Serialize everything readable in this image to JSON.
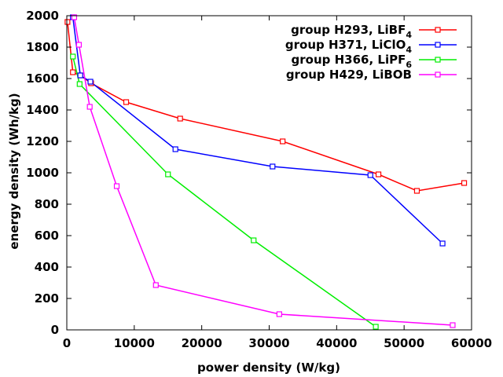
{
  "chart_data": {
    "type": "line",
    "title": "",
    "xlabel": "power density (W/kg)",
    "ylabel": "energy density (Wh/kg)",
    "xlim": [
      0,
      60000
    ],
    "ylim": [
      0,
      2000
    ],
    "xticks": [
      0,
      10000,
      20000,
      30000,
      40000,
      50000,
      60000
    ],
    "yticks": [
      0,
      200,
      400,
      600,
      800,
      1000,
      1200,
      1400,
      1600,
      1800,
      2000
    ],
    "grid": false,
    "legend_position": "top-right",
    "series": [
      {
        "name": "group H293,  LiBF",
        "subscript": "4",
        "color": "#ff0000",
        "x": [
          100,
          900,
          2000,
          3600,
          8800,
          16800,
          32000,
          46200,
          51900,
          58900
        ],
        "y": [
          1960,
          1640,
          1620,
          1570,
          1450,
          1345,
          1200,
          990,
          885,
          935
        ]
      },
      {
        "name": "group H371, LiClO",
        "subscript": "4",
        "color": "#0000ff",
        "x": [
          900,
          2000,
          3500,
          16100,
          30500,
          45000,
          55700
        ],
        "y": [
          1990,
          1620,
          1580,
          1150,
          1040,
          985,
          550
        ]
      },
      {
        "name": "group H366,  LiPF",
        "subscript": "6",
        "color": "#00ee00",
        "x": [
          900,
          1900,
          15000,
          27700,
          45800
        ],
        "y": [
          1740,
          1565,
          990,
          570,
          20
        ]
      },
      {
        "name": "group H429, LiBOB",
        "subscript": "",
        "color": "#ff00ff",
        "x": [
          1100,
          1800,
          3400,
          7400,
          13200,
          31500,
          57200
        ],
        "y": [
          1990,
          1815,
          1420,
          915,
          285,
          100,
          30
        ]
      }
    ]
  }
}
